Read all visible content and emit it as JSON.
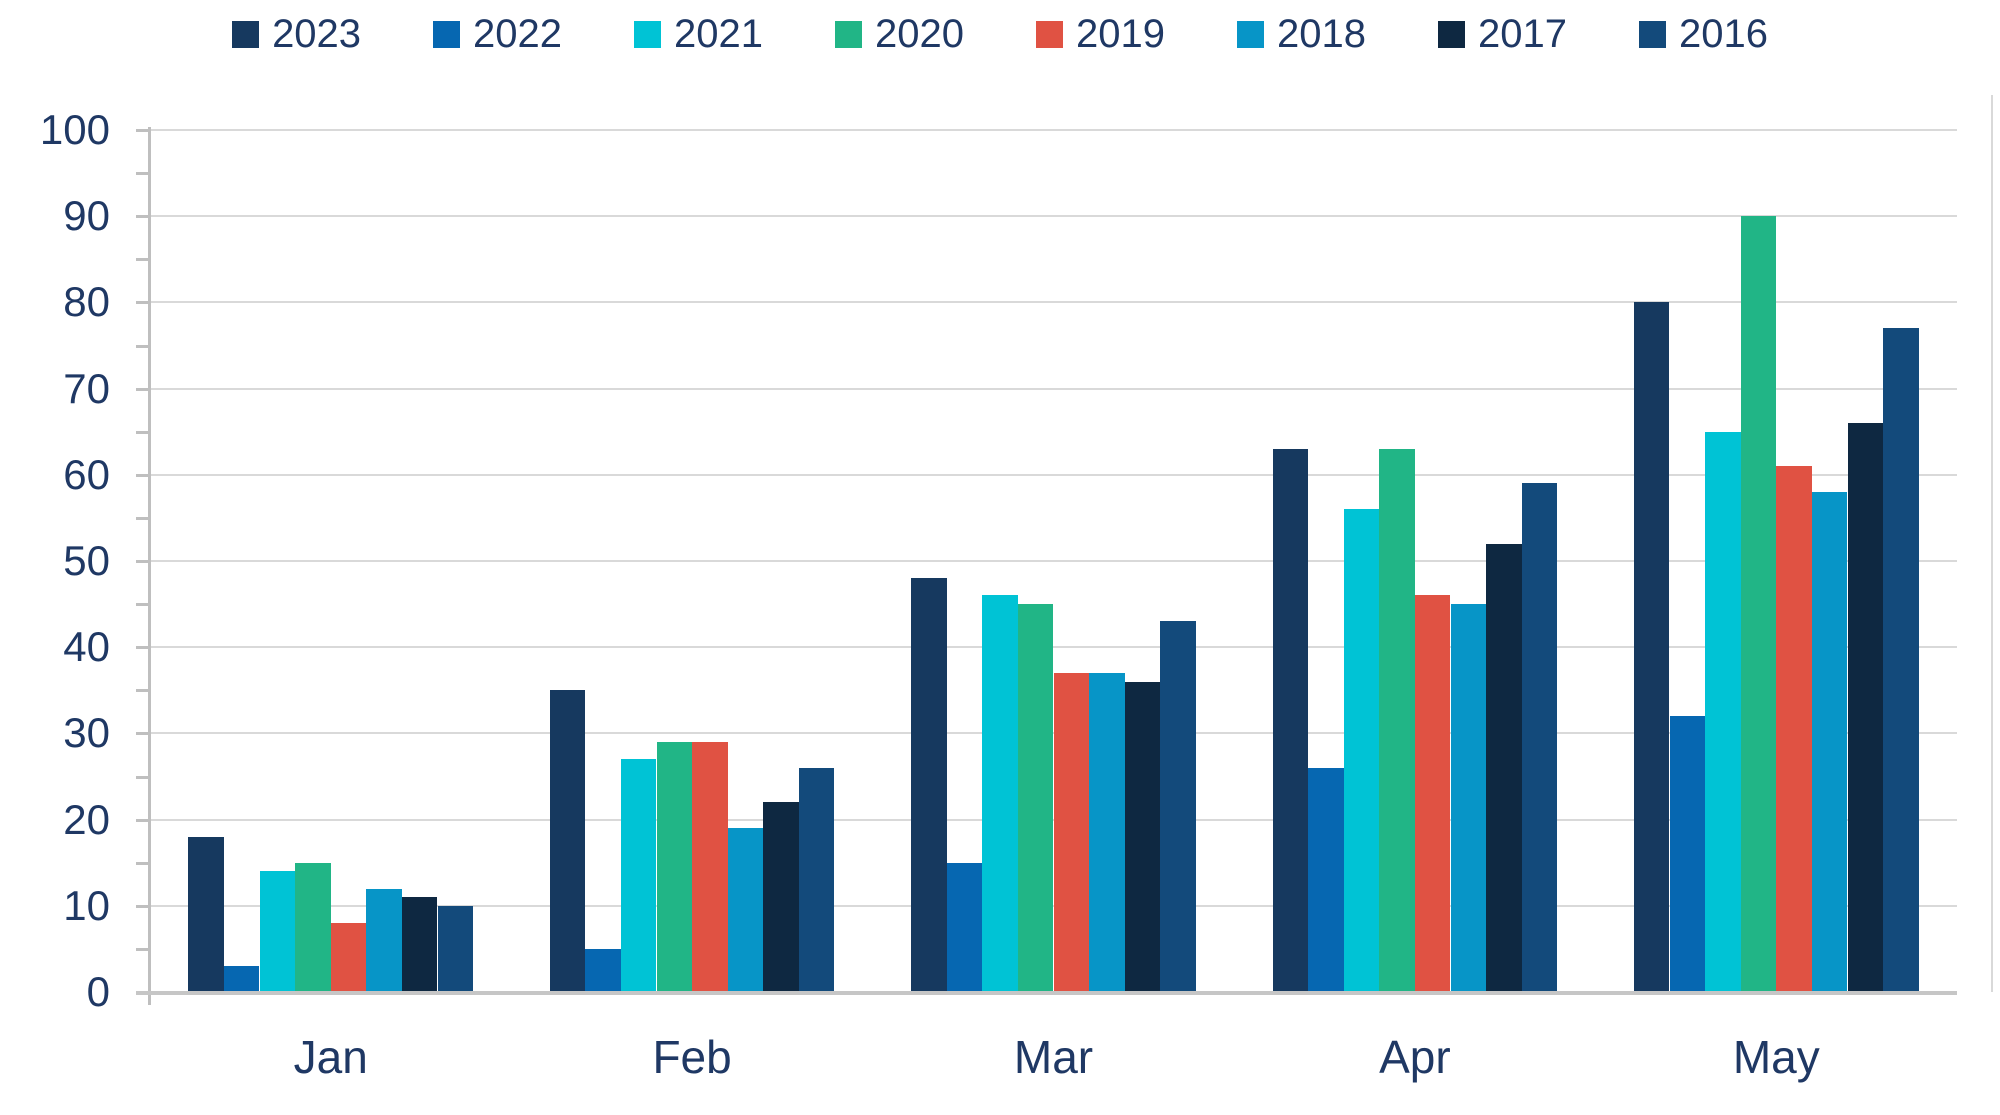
{
  "chart_data": {
    "type": "bar",
    "title": "",
    "xlabel": "",
    "ylabel": "",
    "categories": [
      "Jan",
      "Feb",
      "Mar",
      "Apr",
      "May"
    ],
    "series": [
      {
        "name": "2023",
        "color": "#16395F",
        "values": [
          18,
          35,
          48,
          63,
          80
        ]
      },
      {
        "name": "2022",
        "color": "#0667B1",
        "values": [
          3,
          5,
          15,
          26,
          32
        ]
      },
      {
        "name": "2021",
        "color": "#00C3D5",
        "values": [
          14,
          27,
          46,
          56,
          65
        ]
      },
      {
        "name": "2020",
        "color": "#21B586",
        "values": [
          15,
          29,
          45,
          63,
          90
        ]
      },
      {
        "name": "2019",
        "color": "#E05243",
        "values": [
          8,
          29,
          37,
          46,
          61
        ]
      },
      {
        "name": "2018",
        "color": "#0795C7",
        "values": [
          12,
          19,
          37,
          45,
          58
        ]
      },
      {
        "name": "2017",
        "color": "#0E2841",
        "values": [
          11,
          22,
          36,
          52,
          66
        ]
      },
      {
        "name": "2016",
        "color": "#134A7B",
        "values": [
          10,
          26,
          43,
          59,
          77
        ]
      }
    ],
    "ylim": [
      0,
      100
    ],
    "ytick_labels": [
      "0",
      "10",
      "20",
      "30",
      "40",
      "50",
      "60",
      "70",
      "80",
      "90",
      "100"
    ],
    "ytick_step": 10,
    "minor_tick_step": 5,
    "grid": true,
    "legend_position": "top"
  },
  "styles": {
    "text_color": "#1F3864",
    "gridline_color": "#D9D9D9",
    "axis_color": "#BFBFBF",
    "baseline_color": "#C6C6C6",
    "background": "#FFFFFF"
  }
}
